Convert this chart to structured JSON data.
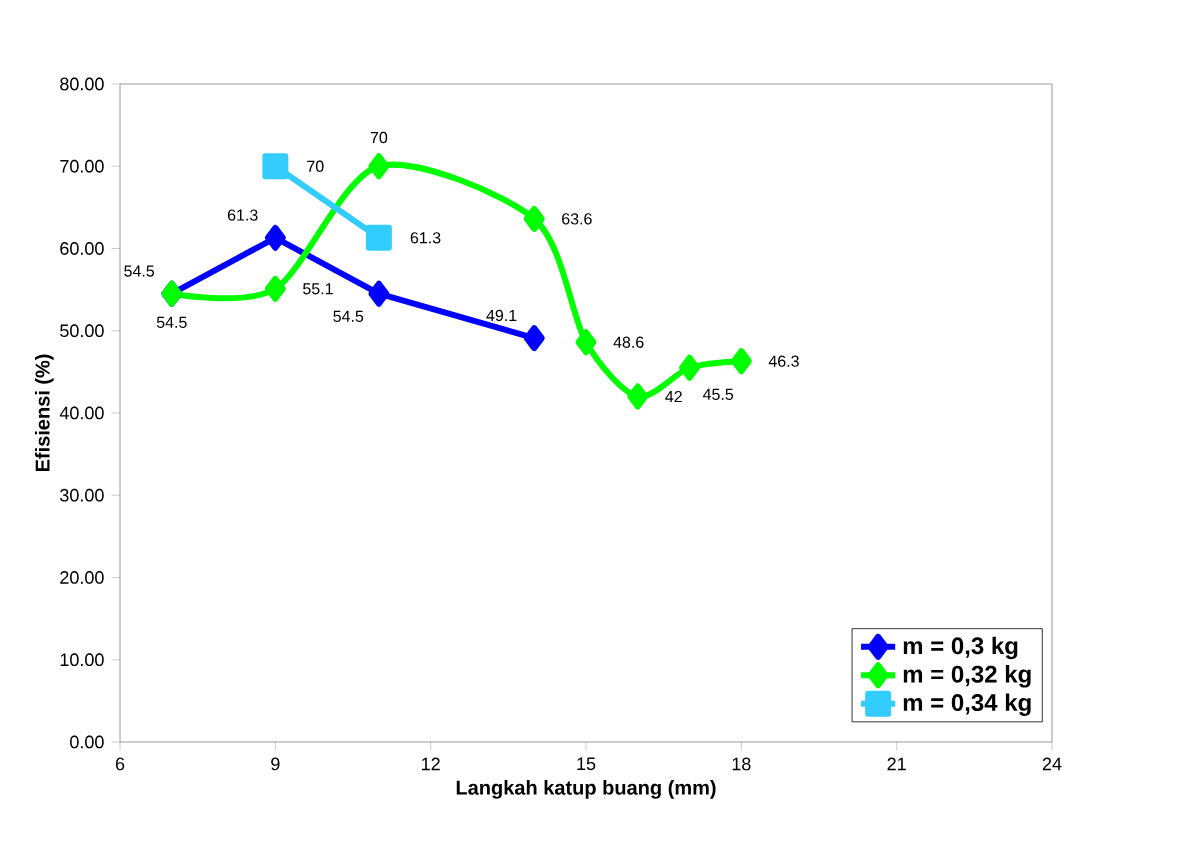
{
  "chart_data": {
    "type": "line",
    "xlabel": "Langkah katup buang (mm)",
    "ylabel": "Efisiensi (%)",
    "xlim": [
      6,
      24
    ],
    "xticks": [
      6,
      9,
      12,
      15,
      18,
      21,
      24
    ],
    "ylim": [
      0,
      80
    ],
    "yticks": [
      {
        "value": 0,
        "label": "0.00"
      },
      {
        "value": 10,
        "label": "10.00"
      },
      {
        "value": 20,
        "label": "20.00"
      },
      {
        "value": 30,
        "label": "30.00"
      },
      {
        "value": 40,
        "label": "40.00"
      },
      {
        "value": 50,
        "label": "50.00"
      },
      {
        "value": 60,
        "label": "60.00"
      },
      {
        "value": 70,
        "label": "70.00"
      },
      {
        "value": 80,
        "label": "80.00"
      }
    ],
    "grid": false,
    "legend": "bottom right",
    "series": [
      {
        "name": "m = 0,3 kg",
        "color": "#0000ff",
        "marker": "diamond",
        "x": [
          7,
          9,
          11,
          14
        ],
        "values": [
          54.5,
          61.3,
          54.5,
          49.1
        ],
        "value_labels": [
          "54.5",
          "61.3",
          "54.5",
          "49.1"
        ]
      },
      {
        "name": "m = 0,32 kg",
        "color": "#00ff00",
        "marker": "diamond",
        "x": [
          7,
          9,
          11,
          14,
          15,
          16,
          17,
          18
        ],
        "values": [
          54.5,
          55.1,
          70,
          63.6,
          48.6,
          42,
          45.5,
          46.3
        ],
        "value_labels": [
          "54.5",
          "55.1",
          "70",
          "63.6",
          "48.6",
          "42",
          "45.5",
          "46.3"
        ]
      },
      {
        "name": "m = 0,34 kg",
        "color": "#33ccff",
        "marker": "square",
        "x": [
          9,
          11
        ],
        "values": [
          70,
          61.3
        ],
        "value_labels": [
          "70",
          "61.3"
        ]
      }
    ]
  }
}
